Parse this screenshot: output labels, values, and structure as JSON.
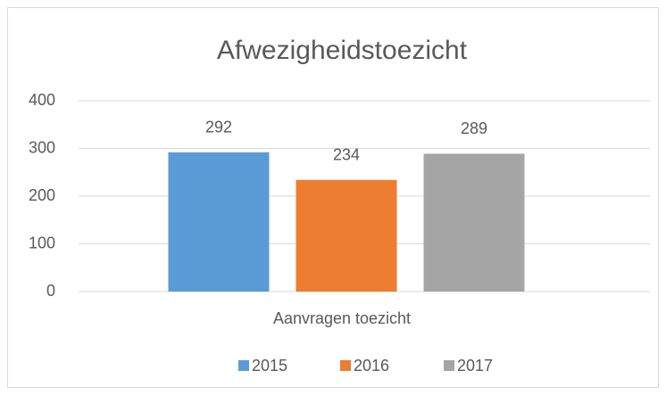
{
  "chart_data": {
    "type": "bar",
    "title": "Afwezigheidstoezicht",
    "categories": [
      "Aanvragen toezicht"
    ],
    "series": [
      {
        "name": "2015",
        "color": "#5b9bd5",
        "values": [
          292
        ]
      },
      {
        "name": "2016",
        "color": "#ed7d31",
        "values": [
          234
        ]
      },
      {
        "name": "2017",
        "color": "#a5a5a5",
        "values": [
          289
        ]
      }
    ],
    "ylim": [
      0,
      400
    ],
    "yticks": [
      0,
      100,
      200,
      300,
      400
    ],
    "grid": true,
    "legend": "bottom"
  }
}
